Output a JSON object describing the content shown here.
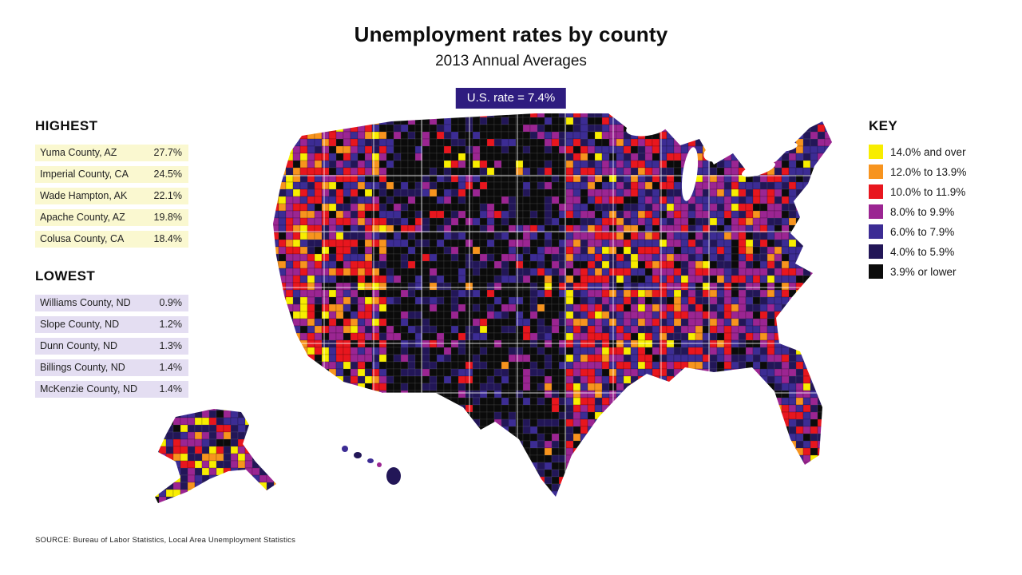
{
  "title": "Unemployment rates by county",
  "subtitle": "2013 Annual Averages",
  "us_rate_label": "U.S. rate = 7.4%",
  "badge_color": "#2e1c7f",
  "highest": {
    "heading": "HIGHEST",
    "row_bg": "#faf8d0",
    "rows": [
      {
        "name": "Yuma County, AZ",
        "value": "27.7%"
      },
      {
        "name": "Imperial County, CA",
        "value": "24.5%"
      },
      {
        "name": "Wade Hampton, AK",
        "value": "22.1%"
      },
      {
        "name": "Apache County, AZ",
        "value": "19.8%"
      },
      {
        "name": "Colusa County, CA",
        "value": "18.4%"
      }
    ]
  },
  "lowest": {
    "heading": "LOWEST",
    "row_bg": "#e4def2",
    "rows": [
      {
        "name": "Williams County, ND",
        "value": "0.9%"
      },
      {
        "name": "Slope County, ND",
        "value": "1.2%"
      },
      {
        "name": "Dunn County, ND",
        "value": "1.3%"
      },
      {
        "name": "Billings County, ND",
        "value": "1.4%"
      },
      {
        "name": "McKenzie County, ND",
        "value": "1.4%"
      }
    ]
  },
  "key": {
    "heading": "KEY",
    "items": [
      {
        "label": "14.0% and over",
        "color": "#f8ed00"
      },
      {
        "label": "12.0% to 13.9%",
        "color": "#f7941e"
      },
      {
        "label": "10.0% to 11.9%",
        "color": "#e8161e"
      },
      {
        "label": "8.0% to 9.9%",
        "color": "#9b2592"
      },
      {
        "label": "6.0% to 7.9%",
        "color": "#3c2c94"
      },
      {
        "label": "4.0% to 5.9%",
        "color": "#221657"
      },
      {
        "label": "3.9% or lower",
        "color": "#0b0b0b"
      }
    ]
  },
  "source": "SOURCE: Bureau of Labor Statistics, Local Area Unemployment Statistics",
  "chart_data": {
    "type": "choropleth",
    "region": "United States counties (incl. Alaska and Hawaii insets)",
    "title": "Unemployment rates by county",
    "subtitle": "2013 Annual Averages",
    "us_rate_percent": 7.4,
    "unit": "%",
    "bins": [
      {
        "label": "14.0% and over",
        "color": "#f8ed00"
      },
      {
        "label": "12.0% to 13.9%",
        "color": "#f7941e"
      },
      {
        "label": "10.0% to 11.9%",
        "color": "#e8161e"
      },
      {
        "label": "8.0% to 9.9%",
        "color": "#9b2592"
      },
      {
        "label": "6.0% to 7.9%",
        "color": "#3c2c94"
      },
      {
        "label": "4.0% to 5.9%",
        "color": "#221657"
      },
      {
        "label": "3.9% or lower",
        "color": "#0b0b0b"
      }
    ],
    "highest_counties": [
      {
        "name": "Yuma County, AZ",
        "value": 27.7
      },
      {
        "name": "Imperial County, CA",
        "value": 24.5
      },
      {
        "name": "Wade Hampton, AK",
        "value": 22.1
      },
      {
        "name": "Apache County, AZ",
        "value": 19.8
      },
      {
        "name": "Colusa County, CA",
        "value": 18.4
      }
    ],
    "lowest_counties": [
      {
        "name": "Williams County, ND",
        "value": 0.9
      },
      {
        "name": "Slope County, ND",
        "value": 1.2
      },
      {
        "name": "Dunn County, ND",
        "value": 1.3
      },
      {
        "name": "Billings County, ND",
        "value": 1.4
      },
      {
        "name": "McKenzie County, ND",
        "value": 1.4
      }
    ],
    "source": "SOURCE: Bureau of Labor Statistics, Local Area Unemployment Statistics"
  }
}
